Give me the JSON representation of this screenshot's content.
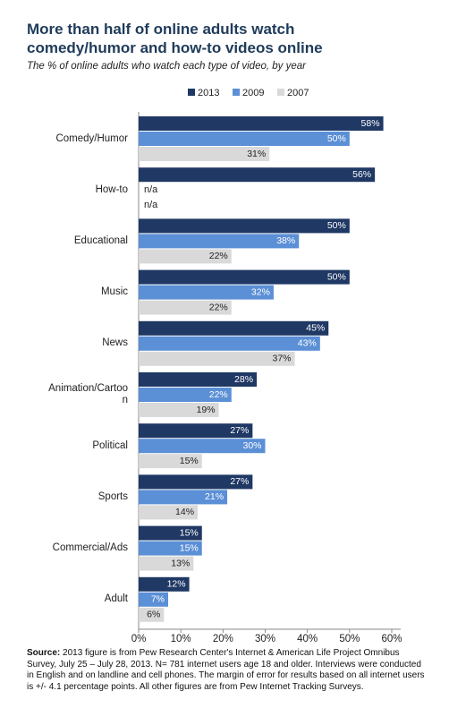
{
  "chart_data": {
    "type": "hbar",
    "title": "More than half of online adults watch comedy/humor and how-to videos online",
    "subtitle": "The % of online adults who watch each type of video, by year",
    "categories": [
      "Comedy/Humor",
      "How-to",
      "Educational",
      "Music",
      "News",
      "Animation/Cartoon",
      "Political",
      "Sports",
      "Commercial/Ads",
      "Adult"
    ],
    "series": [
      {
        "name": "2013",
        "color": "#1f3864",
        "values": [
          58,
          56,
          50,
          50,
          45,
          28,
          27,
          27,
          15,
          12
        ],
        "value_labels": [
          "58%",
          "56%",
          "50%",
          "50%",
          "45%",
          "28%",
          "27%",
          "27%",
          "15%",
          "12%"
        ]
      },
      {
        "name": "2009",
        "color": "#5b8fd6",
        "values": [
          50,
          null,
          38,
          32,
          43,
          22,
          30,
          21,
          15,
          7
        ],
        "value_labels": [
          "50%",
          "n/a",
          "38%",
          "32%",
          "43%",
          "22%",
          "30%",
          "21%",
          "15%",
          "7%"
        ]
      },
      {
        "name": "2007",
        "color": "#d9d9d9",
        "values": [
          31,
          null,
          22,
          22,
          37,
          19,
          15,
          14,
          13,
          6
        ],
        "value_labels": [
          "31%",
          "n/a",
          "22%",
          "22%",
          "37%",
          "19%",
          "15%",
          "14%",
          "13%",
          "6%"
        ]
      }
    ],
    "xlim": [
      0,
      60
    ],
    "xticks": [
      {
        "value": 0,
        "label": "0%"
      },
      {
        "value": 10,
        "label": "10%"
      },
      {
        "value": 20,
        "label": "20%"
      },
      {
        "value": 30,
        "label": "30%"
      },
      {
        "value": 40,
        "label": "40%"
      },
      {
        "value": 50,
        "label": "50%"
      },
      {
        "value": 60,
        "label": "60%"
      }
    ],
    "grid": false,
    "source_label": "Source:",
    "source": "2013 figure is from Pew Research Center's Internet & American Life Project Omnibus Survey, July 25 – July 28, 2013. N= 781 internet users age 18 and older. Interviews were conducted in English and on landline and cell phones. The margin of error for results based on all internet users is +/- 4.1 percentage points. All other figures are from Pew Internet Tracking Surveys."
  }
}
